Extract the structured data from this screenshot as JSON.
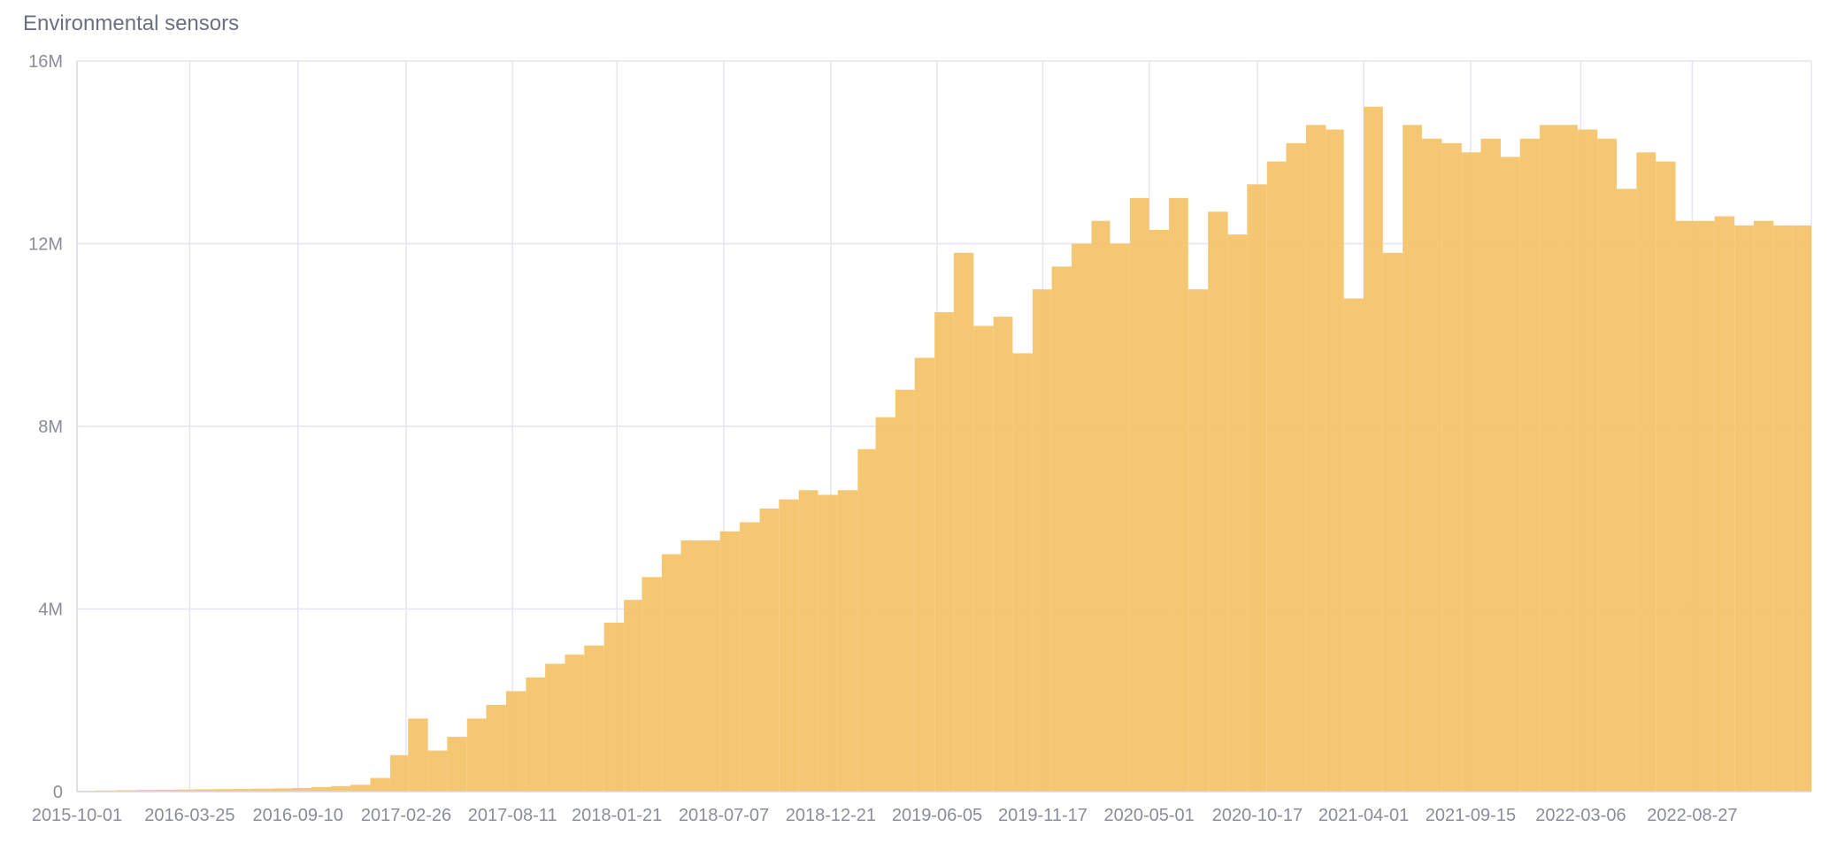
{
  "chart_data": {
    "type": "bar",
    "title": "Environmental sensors",
    "color": "#f5c266",
    "grid": true,
    "xlim": [
      "2015-10-01",
      "2023-03-01"
    ],
    "xticks": [
      "2015-10-01",
      "2016-03-25",
      "2016-09-10",
      "2017-02-26",
      "2017-08-11",
      "2018-01-21",
      "2018-07-07",
      "2018-12-21",
      "2019-06-05",
      "2019-11-17",
      "2020-05-01",
      "2020-10-17",
      "2021-04-01",
      "2021-09-15",
      "2022-03-06",
      "2022-08-27"
    ],
    "ylim": [
      0,
      16000000
    ],
    "yticks": [
      0,
      {
        "value": 4000000,
        "label": "4M"
      },
      {
        "value": 8000000,
        "label": "8M"
      },
      {
        "value": 12000000,
        "label": "12M"
      },
      {
        "value": 16000000,
        "label": "16M"
      }
    ],
    "x": [
      "2015-10-01",
      "2015-11-01",
      "2015-12-01",
      "2016-01-01",
      "2016-02-01",
      "2016-03-01",
      "2016-04-01",
      "2016-05-01",
      "2016-06-01",
      "2016-07-01",
      "2016-08-01",
      "2016-09-01",
      "2016-10-01",
      "2016-11-01",
      "2016-12-01",
      "2017-01-01",
      "2017-02-01",
      "2017-03-01",
      "2017-04-01",
      "2017-05-01",
      "2017-06-01",
      "2017-07-01",
      "2017-08-01",
      "2017-09-01",
      "2017-10-01",
      "2017-11-01",
      "2017-12-01",
      "2018-01-01",
      "2018-02-01",
      "2018-03-01",
      "2018-04-01",
      "2018-05-01",
      "2018-06-01",
      "2018-07-01",
      "2018-08-01",
      "2018-09-01",
      "2018-10-01",
      "2018-11-01",
      "2018-12-01",
      "2019-01-01",
      "2019-02-01",
      "2019-03-01",
      "2019-04-01",
      "2019-05-01",
      "2019-06-01",
      "2019-07-01",
      "2019-08-01",
      "2019-09-01",
      "2019-10-01",
      "2019-11-01",
      "2019-12-01",
      "2020-01-01",
      "2020-02-01",
      "2020-03-01",
      "2020-04-01",
      "2020-05-01",
      "2020-06-01",
      "2020-07-01",
      "2020-08-01",
      "2020-09-01",
      "2020-10-01",
      "2020-11-01",
      "2020-12-01",
      "2021-01-01",
      "2021-02-01",
      "2021-03-01",
      "2021-04-01",
      "2021-05-01",
      "2021-06-01",
      "2021-07-01",
      "2021-08-01",
      "2021-09-01",
      "2021-10-01",
      "2021-11-01",
      "2021-12-01",
      "2022-01-01",
      "2022-02-01",
      "2022-03-01",
      "2022-04-01",
      "2022-05-01",
      "2022-06-01",
      "2022-07-01",
      "2022-08-01",
      "2022-09-01",
      "2022-10-01",
      "2022-11-01",
      "2022-12-01",
      "2023-01-01",
      "2023-02-01"
    ],
    "values": [
      20000,
      25000,
      30000,
      35000,
      40000,
      45000,
      50000,
      55000,
      60000,
      65000,
      70000,
      80000,
      100000,
      120000,
      150000,
      300000,
      800000,
      1600000,
      900000,
      1200000,
      1600000,
      1900000,
      2200000,
      2500000,
      2800000,
      3000000,
      3200000,
      3700000,
      4200000,
      4700000,
      5200000,
      5500000,
      5500000,
      5700000,
      5900000,
      6200000,
      6400000,
      6600000,
      6500000,
      6600000,
      7500000,
      8200000,
      8800000,
      9500000,
      10500000,
      11800000,
      10200000,
      10400000,
      9600000,
      11000000,
      11500000,
      12000000,
      12500000,
      12000000,
      13000000,
      12300000,
      13000000,
      11000000,
      12700000,
      12200000,
      13300000,
      13800000,
      14200000,
      14600000,
      14500000,
      10800000,
      15000000,
      11800000,
      14600000,
      14300000,
      14200000,
      14000000,
      14300000,
      13900000,
      14300000,
      14600000,
      14600000,
      14500000,
      14300000,
      13200000,
      14000000,
      13800000,
      12500000,
      12500000,
      12600000,
      12400000,
      12500000,
      12400000,
      12400000
    ]
  }
}
